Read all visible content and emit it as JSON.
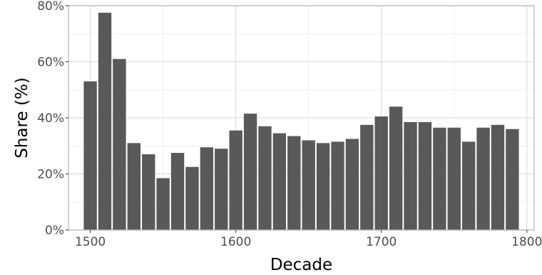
{
  "chart_data": {
    "type": "bar",
    "xlabel": "Decade",
    "ylabel": "Share (%)",
    "xlim": [
      1485,
      1805
    ],
    "ylim": [
      0,
      80
    ],
    "x_ticks": [
      1500,
      1600,
      1700,
      1800
    ],
    "x_tick_labels": [
      "1500",
      "1600",
      "1700",
      "1800"
    ],
    "y_ticks": [
      0,
      20,
      40,
      60,
      80
    ],
    "y_tick_labels": [
      "0%",
      "20%",
      "40%",
      "60%",
      "80%"
    ],
    "grid": true,
    "legend": "none",
    "categories": [
      1500,
      1510,
      1520,
      1530,
      1540,
      1550,
      1560,
      1570,
      1580,
      1590,
      1600,
      1610,
      1620,
      1630,
      1640,
      1650,
      1660,
      1670,
      1680,
      1690,
      1700,
      1710,
      1720,
      1730,
      1740,
      1750,
      1760,
      1770,
      1780,
      1790
    ],
    "values": [
      53,
      77.5,
      61,
      31,
      27,
      18.5,
      27.5,
      22.5,
      29.5,
      29,
      35.5,
      41.5,
      37,
      34.5,
      33.5,
      32,
      31,
      31.5,
      32.5,
      37.5,
      40.5,
      44,
      38.5,
      38.5,
      36.5,
      36.5,
      31.5,
      36.5,
      37.5,
      36
    ],
    "colors": {
      "bar": "#595959",
      "panel_border": "#b3b3b3",
      "grid_major": "#dedede",
      "grid_minor": "#efefef"
    }
  }
}
